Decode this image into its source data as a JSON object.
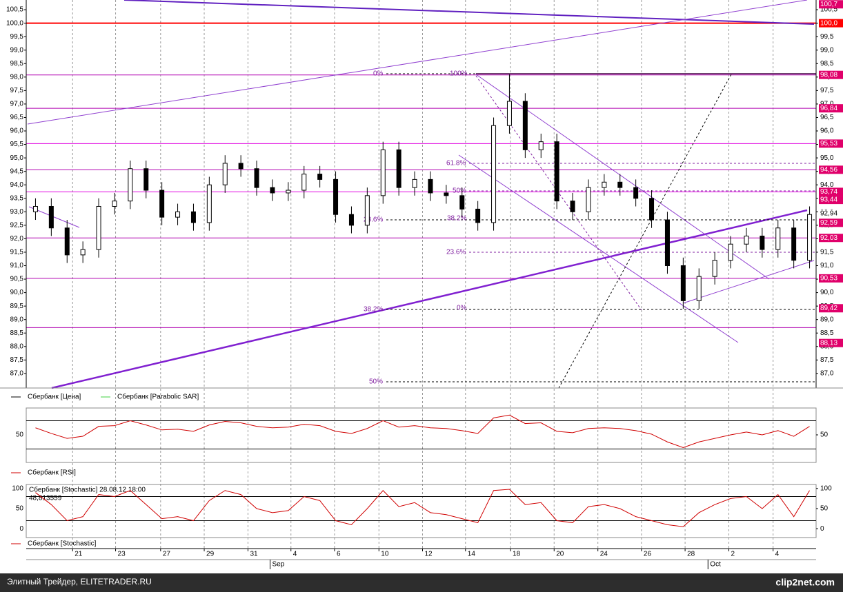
{
  "chart_data": {
    "type": "candlestick",
    "legend": [
      "Сбербанк [Цена]",
      "Сбербанк [Parabolic SAR]"
    ],
    "open": [
      93.0,
      93.2,
      92.4,
      91.4,
      91.6,
      93.2,
      93.4,
      94.6,
      93.8,
      92.8,
      93.0,
      92.6,
      94.0,
      94.8,
      94.6,
      93.9,
      93.7,
      93.8,
      94.4,
      94.2,
      92.9,
      92.5,
      93.6,
      95.3,
      93.9,
      94.2,
      93.7,
      93.6,
      93.1,
      92.6,
      96.2,
      97.1,
      95.3,
      95.6,
      93.4,
      93.0,
      93.9,
      94.1,
      93.9,
      93.5,
      92.7,
      91.0,
      89.7,
      90.6,
      91.2,
      91.8,
      92.1,
      91.6,
      92.4,
      91.2
    ],
    "high": [
      93.5,
      93.5,
      92.7,
      91.9,
      93.5,
      93.7,
      94.9,
      94.9,
      94.1,
      93.3,
      93.3,
      94.3,
      95.1,
      95.1,
      94.9,
      94.2,
      94.1,
      94.7,
      94.7,
      94.5,
      93.2,
      93.9,
      95.6,
      95.6,
      94.5,
      94.5,
      94.0,
      93.9,
      93.4,
      96.5,
      98.1,
      97.4,
      95.9,
      95.9,
      93.7,
      94.2,
      94.4,
      94.4,
      94.2,
      93.8,
      93.0,
      91.3,
      90.9,
      91.5,
      92.1,
      92.4,
      92.4,
      92.7,
      92.7,
      93.2
    ],
    "low": [
      92.7,
      92.1,
      91.1,
      91.1,
      91.3,
      92.9,
      93.1,
      93.5,
      92.5,
      92.5,
      92.3,
      92.3,
      93.7,
      94.3,
      93.6,
      93.4,
      93.4,
      93.5,
      93.9,
      92.6,
      92.2,
      92.2,
      93.3,
      93.6,
      93.6,
      93.4,
      93.3,
      92.8,
      92.3,
      92.3,
      95.9,
      95.0,
      95.0,
      93.1,
      92.7,
      92.7,
      93.6,
      93.6,
      93.2,
      92.4,
      90.7,
      89.4,
      89.4,
      90.3,
      90.9,
      91.5,
      91.3,
      91.3,
      90.9,
      90.9
    ],
    "close": [
      93.2,
      92.4,
      91.4,
      91.6,
      93.2,
      93.4,
      94.6,
      93.8,
      92.8,
      93.0,
      92.6,
      94.0,
      94.8,
      94.6,
      93.9,
      93.7,
      93.8,
      94.4,
      94.2,
      92.9,
      92.5,
      93.6,
      95.3,
      93.9,
      94.2,
      93.7,
      93.6,
      93.1,
      92.6,
      96.2,
      97.1,
      95.3,
      95.6,
      93.4,
      93.0,
      93.9,
      94.1,
      93.9,
      93.5,
      92.7,
      91.0,
      89.7,
      90.6,
      91.2,
      91.8,
      92.1,
      91.6,
      92.4,
      91.2,
      92.9
    ],
    "ylim": [
      86.46,
      100.86
    ],
    "yticks": [
      {
        "value": 87,
        "label": "87,0"
      },
      {
        "value": 87.5,
        "label": "87,5"
      },
      {
        "value": 88,
        "label": "88,0"
      },
      {
        "value": 88.5,
        "label": "88,5"
      },
      {
        "value": 89,
        "label": "89,0"
      },
      {
        "value": 89.5,
        "label": "89,5"
      },
      {
        "value": 90,
        "label": "90,0"
      },
      {
        "value": 90.5,
        "label": "90,5"
      },
      {
        "value": 91,
        "label": "91,0"
      },
      {
        "value": 91.5,
        "label": "91,5"
      },
      {
        "value": 92,
        "label": "92,0"
      },
      {
        "value": 92.5,
        "label": "92,5"
      },
      {
        "value": 93,
        "label": "93,0"
      },
      {
        "value": 93.5,
        "label": "93,5"
      },
      {
        "value": 94,
        "label": "94,0"
      },
      {
        "value": 94.5,
        "label": "94,5"
      },
      {
        "value": 95,
        "label": "95,0"
      },
      {
        "value": 95.5,
        "label": "95,5"
      },
      {
        "value": 96,
        "label": "96,0"
      },
      {
        "value": 96.5,
        "label": "96,5"
      },
      {
        "value": 97,
        "label": "97,0"
      },
      {
        "value": 97.5,
        "label": "97,5"
      },
      {
        "value": 98,
        "label": "98,0"
      },
      {
        "value": 98.5,
        "label": "98,5"
      },
      {
        "value": 99,
        "label": "99,0"
      },
      {
        "value": 99.5,
        "label": "99,5"
      },
      {
        "value": 100,
        "label": "100,0"
      },
      {
        "value": 100.5,
        "label": "100,5"
      }
    ],
    "xticks": [
      {
        "value": 2.35,
        "label": "21"
      },
      {
        "value": 5.07,
        "label": "23"
      },
      {
        "value": 7.92,
        "label": "27"
      },
      {
        "value": 10.68,
        "label": "29"
      },
      {
        "value": 13.45,
        "label": "31"
      },
      {
        "value": 16.17,
        "label": "4"
      },
      {
        "value": 18.93,
        "label": "6"
      },
      {
        "value": 21.74,
        "label": "10"
      },
      {
        "value": 24.5,
        "label": "12"
      },
      {
        "value": 27.22,
        "label": "14"
      },
      {
        "value": 30.07,
        "label": "18"
      },
      {
        "value": 32.83,
        "label": "20"
      },
      {
        "value": 35.6,
        "label": "24"
      },
      {
        "value": 38.36,
        "label": "26"
      },
      {
        "value": 41.12,
        "label": "28"
      },
      {
        "value": 43.89,
        "label": "2"
      },
      {
        "value": 46.69,
        "label": "4"
      }
    ],
    "months": [
      {
        "value": 14.85,
        "label": "Sep"
      },
      {
        "value": 42.57,
        "label": "Oct"
      }
    ],
    "levels": [
      {
        "value": 100,
        "color": "#ff0000"
      },
      {
        "value": 98.08,
        "color": "#b000b0"
      },
      {
        "value": 96.84,
        "color": "#b000b0"
      },
      {
        "value": 95.53,
        "color": "#e000e0"
      },
      {
        "value": 94.56,
        "color": "#b000b0"
      },
      {
        "value": 93.74,
        "color": "#e000e0"
      },
      {
        "value": 92.03,
        "color": "#b000b0"
      },
      {
        "value": 90.53,
        "color": "#b000b0"
      },
      {
        "value": 88.7,
        "color": "#b000b0"
      }
    ],
    "price_tags": [
      {
        "value": 100.7,
        "label": "100,7",
        "color": "#e0006a"
      },
      {
        "value": 100,
        "label": "100,0",
        "color": "#ff0000"
      },
      {
        "value": 98.08,
        "label": "98,08",
        "color": "#e0006a"
      },
      {
        "value": 96.84,
        "label": "96,84",
        "color": "#e0006a"
      },
      {
        "value": 95.53,
        "label": "95,53",
        "color": "#e0006a"
      },
      {
        "value": 94.56,
        "label": "94,56",
        "color": "#e0006a"
      },
      {
        "value": 93.74,
        "label": "93,74",
        "color": "#e0006a"
      },
      {
        "value": 93.44,
        "label": "93,44",
        "color": "#e0006a"
      },
      {
        "value": 92.94,
        "label": "92,94",
        "color": "#ffffff"
      },
      {
        "value": 92.59,
        "label": "92,59",
        "color": "#e0006a"
      },
      {
        "value": 92.03,
        "label": "92,03",
        "color": "#e0006a"
      },
      {
        "value": 90.53,
        "label": "90,53",
        "color": "#e0006a"
      },
      {
        "value": 89.42,
        "label": "89,42",
        "color": "#e0006a"
      },
      {
        "value": 88.13,
        "label": "88,13",
        "color": "#e0006a"
      }
    ],
    "fib_labels": [
      "0%",
      "100%",
      "61.8%",
      "50%",
      "38.2%",
      "23.6%",
      "23.6%",
      "38.2%",
      "0%",
      "50%"
    ],
    "grid": true
  },
  "rsi": {
    "legend": "Сбербанк [RSI]",
    "color": "#d00000",
    "values": [
      60,
      52,
      45,
      48,
      62,
      63,
      70,
      64,
      57,
      58,
      55,
      64,
      69,
      67,
      62,
      60,
      61,
      65,
      63,
      55,
      52,
      59,
      70,
      61,
      63,
      60,
      59,
      56,
      52,
      74,
      78,
      66,
      67,
      55,
      53,
      59,
      60,
      59,
      56,
      51,
      40,
      32,
      40,
      45,
      50,
      54,
      50,
      56,
      48,
      62
    ],
    "ylim": [
      11,
      88
    ],
    "yticks": [
      50
    ],
    "levels": [
      30,
      70
    ]
  },
  "stochastic": {
    "legend": "Сбербанк [Stochastic]",
    "header": "Сбербанк [Stochastic] 28.08.12 18:00",
    "readout": "48,813559",
    "color": "#d00000",
    "values": [
      90,
      60,
      20,
      30,
      85,
      80,
      95,
      60,
      25,
      30,
      20,
      70,
      95,
      85,
      50,
      40,
      45,
      80,
      70,
      20,
      10,
      50,
      95,
      55,
      65,
      40,
      35,
      25,
      15,
      95,
      98,
      60,
      65,
      20,
      15,
      55,
      60,
      50,
      30,
      20,
      10,
      5,
      40,
      60,
      75,
      80,
      50,
      85,
      30,
      95
    ],
    "ylim": [
      -22,
      110
    ],
    "yticks": [
      0,
      50,
      100
    ],
    "levels": [
      20,
      80
    ]
  },
  "footer": {
    "text": "Элитный Трейдер, ELITETRADER.RU",
    "logo": "clip2net.com"
  }
}
